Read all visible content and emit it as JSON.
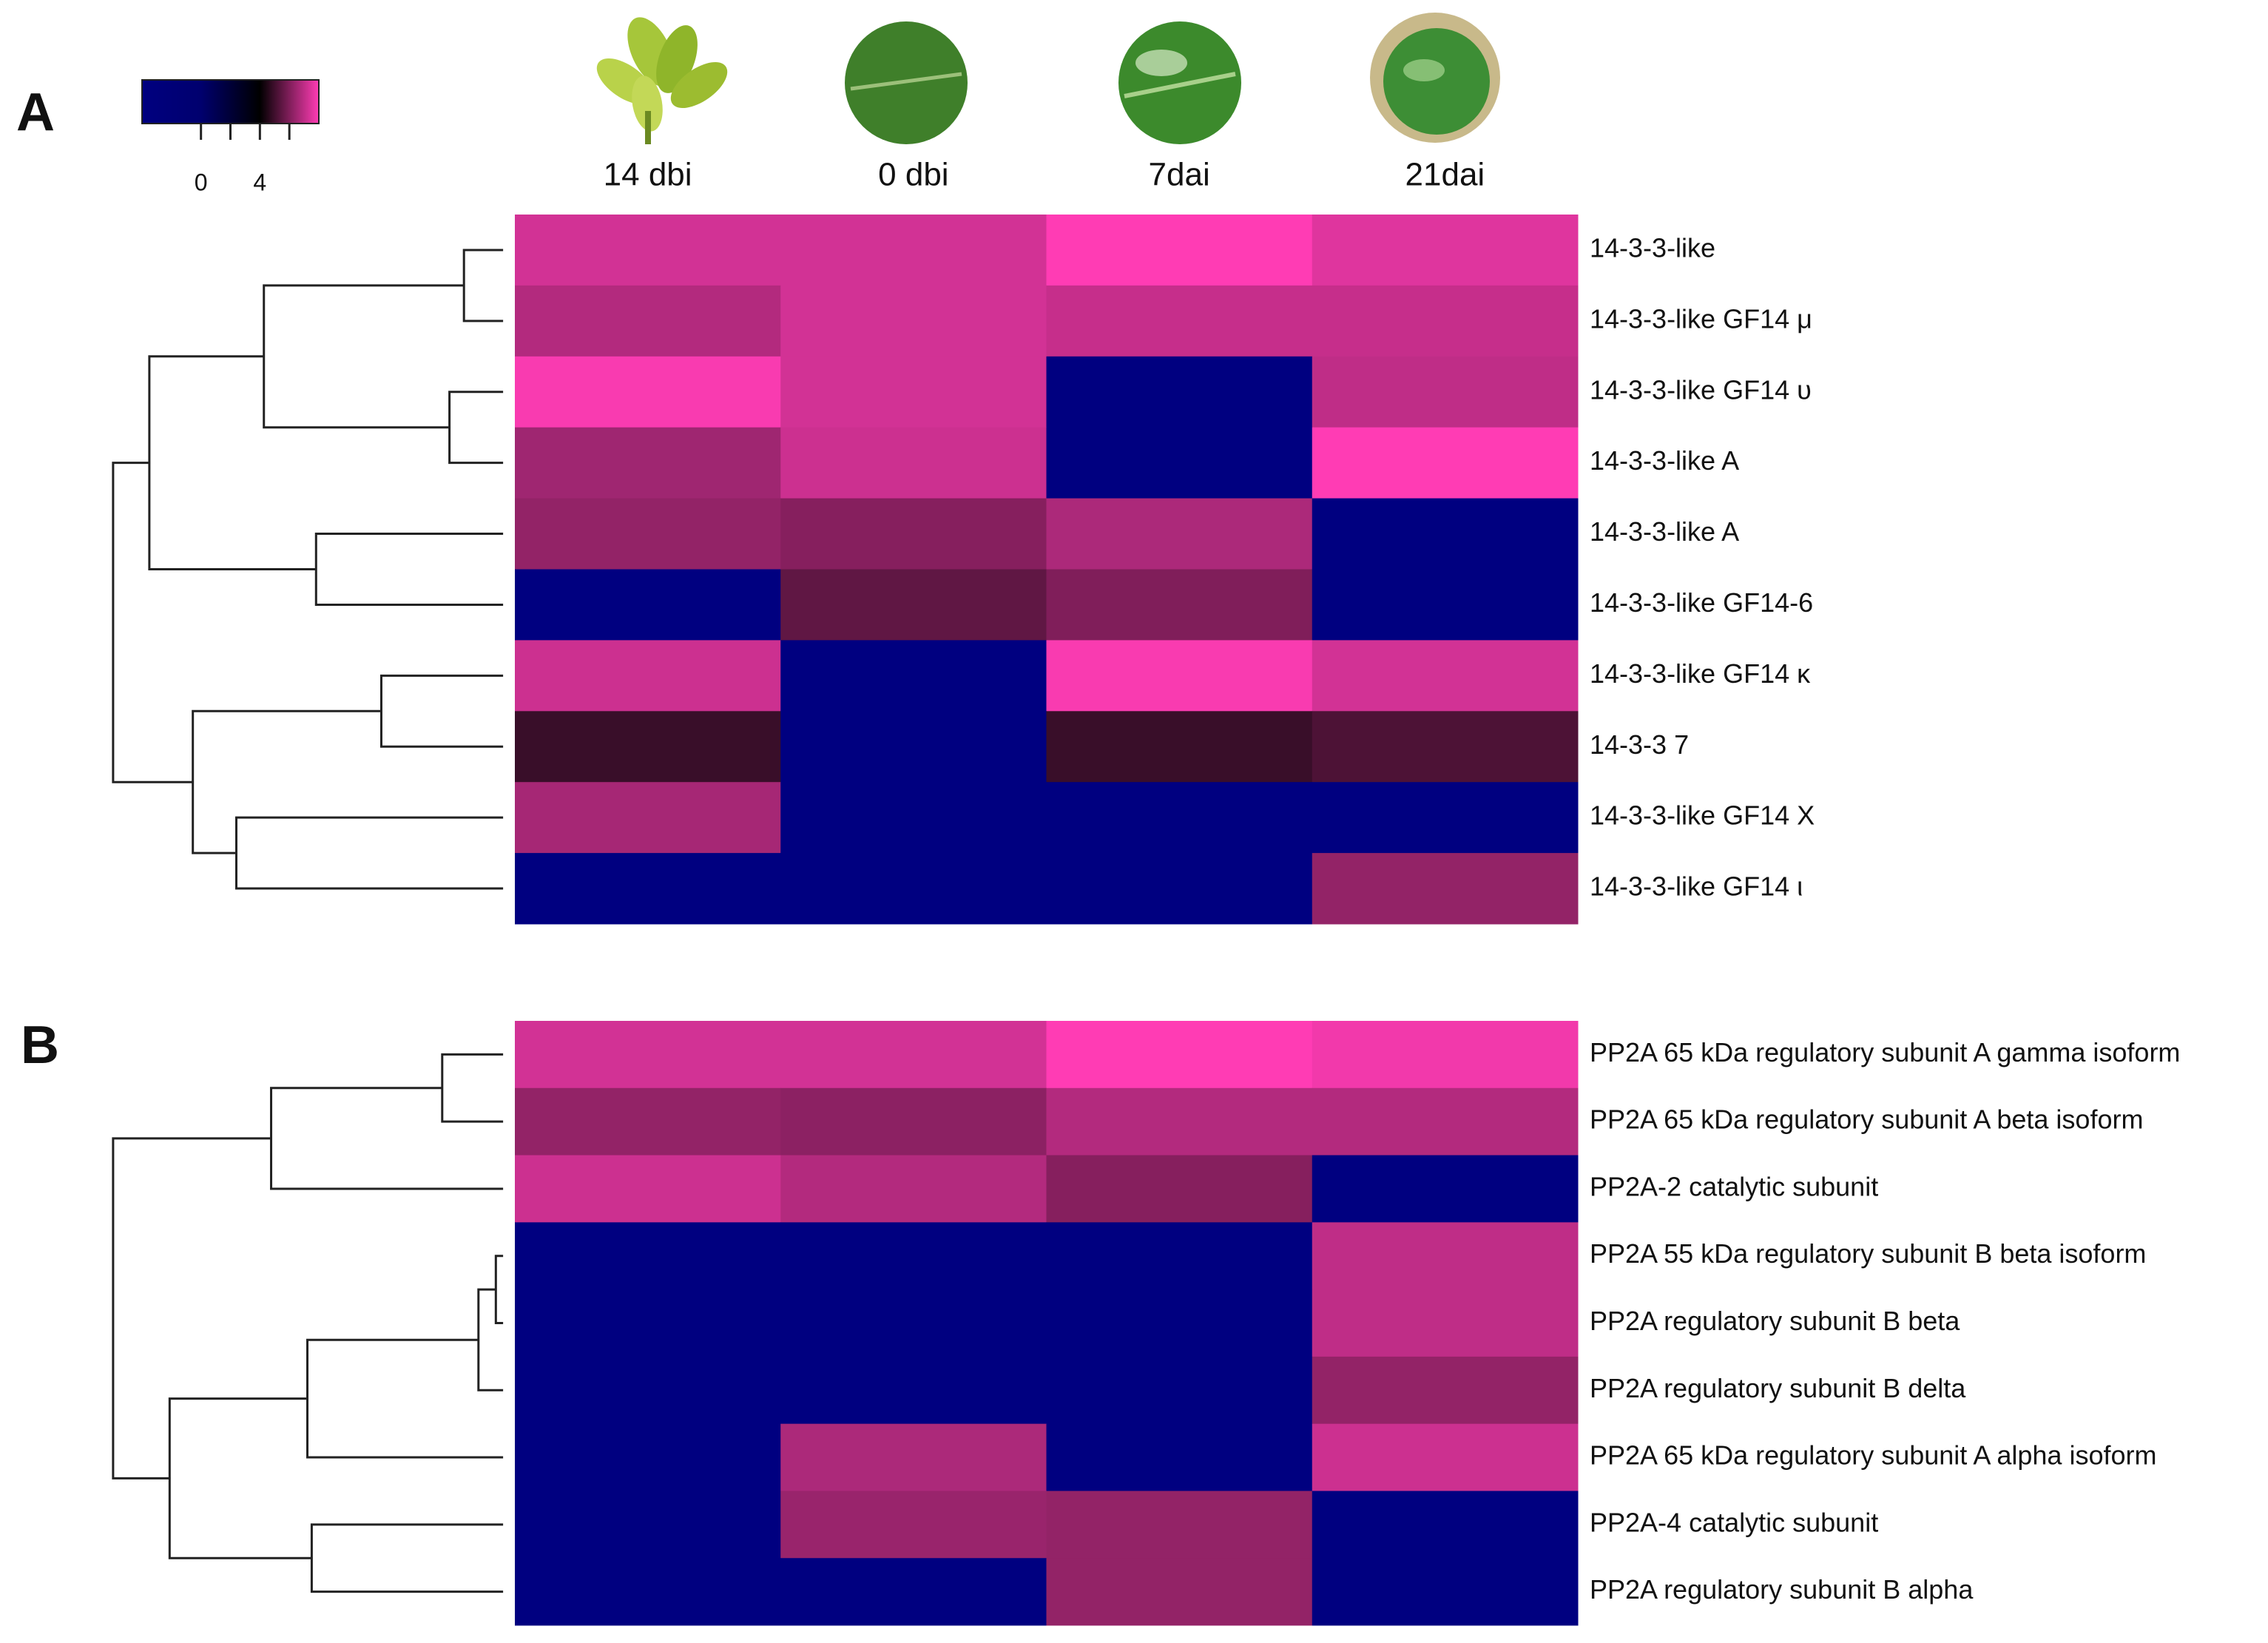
{
  "colorbar": {
    "zlim": [
      -4,
      8
    ],
    "ticks": [
      0,
      4
    ],
    "minor_ticks": [
      2,
      6
    ],
    "colorscale": [
      [
        -4,
        "#000080"
      ],
      [
        0,
        "#00006e"
      ],
      [
        4,
        "#000000"
      ],
      [
        8,
        "#ff3cb4"
      ]
    ]
  },
  "chart_data": [
    {
      "type": "heatmap",
      "panel": "A",
      "x": [
        "14 dbi",
        "0 dbi",
        "7dai",
        "21dai"
      ],
      "y": [
        "14-3-3-like",
        "14-3-3-like GF14 μ",
        "14-3-3-like GF14 υ",
        "14-3-3-like A",
        "14-3-3-like A",
        "14-3-3-like GF14-6",
        "14-3-3-like GF14 κ",
        "14-3-3 7",
        "14-3-3-like GF14 X",
        "14-3-3-like GF14 ι"
      ],
      "values": [
        [
          7.3,
          7.3,
          8,
          7.5
        ],
        [
          6.8,
          7.3,
          7.1,
          7.1
        ],
        [
          7.9,
          7.3,
          -4,
          7
        ],
        [
          6.5,
          7.2,
          -4,
          8
        ],
        [
          6.3,
          6.1,
          6.7,
          -4
        ],
        [
          -4,
          5.5,
          6,
          -4
        ],
        [
          7.2,
          -4,
          7.9,
          7.3
        ],
        [
          4.9,
          -4,
          4.9,
          5.2
        ],
        [
          6.6,
          -4,
          -4,
          -4
        ],
        [
          -4,
          -4,
          -4,
          6.3
        ]
      ]
    },
    {
      "type": "heatmap",
      "panel": "B",
      "y": [
        "PP2A 65 kDa regulatory subunit A gamma  isoform",
        "PP2A 65 kDa regulatory subunit A beta isoform",
        "PP2A-2 catalytic subunit",
        "PP2A 55 kDa regulatory subunit B beta isoform",
        "PP2A regulatory subunit B beta",
        "PP2A regulatory subunit B delta",
        "PP2A 65 kDa regulatory subunit A alpha isoform",
        "PP2A-4 catalytic subunit",
        "PP2A regulatory subunit B alpha"
      ],
      "values": [
        [
          7.3,
          7.3,
          8,
          7.8
        ],
        [
          6.3,
          6.2,
          6.8,
          6.8
        ],
        [
          7.2,
          6.8,
          6.1,
          -4
        ],
        [
          -4,
          -4,
          -4,
          7
        ],
        [
          -4,
          -4,
          -4,
          7
        ],
        [
          -4,
          -4,
          -4,
          6.3
        ],
        [
          -4,
          6.7,
          -4,
          7.2
        ],
        [
          -4,
          6.4,
          6.3,
          -4
        ],
        [
          -4,
          -4,
          6.3,
          -4
        ]
      ]
    }
  ]
}
